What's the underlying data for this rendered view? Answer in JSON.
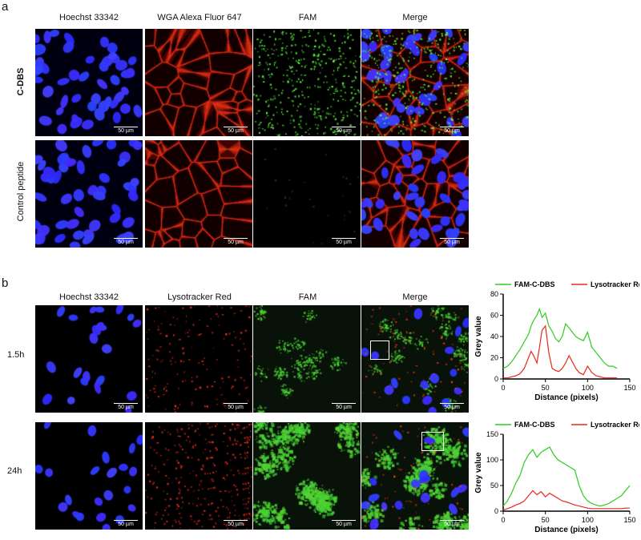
{
  "panel_a": {
    "letter": "a",
    "columns": [
      "Hoechst 33342",
      "WGA Alexa Fluor 647",
      "FAM",
      "Merge"
    ],
    "rows": [
      "C-DBS",
      "Control peptide"
    ],
    "scalebar": "50 µm"
  },
  "panel_b": {
    "letter": "b",
    "columns": [
      "Hoechst 33342",
      "Lysotracker Red",
      "FAM",
      "Merge"
    ],
    "rows": [
      "1.5h",
      "24h"
    ],
    "scalebar": "50 µm"
  },
  "colors": {
    "green": "#2ecc1f",
    "red": "#e8281c",
    "blue": "#2020ff"
  },
  "chart_data": [
    {
      "type": "line",
      "xlabel": "Distance (pixels)",
      "ylabel": "Grey value",
      "xlim": [
        0,
        150
      ],
      "ylim": [
        0,
        80
      ],
      "xticks": [
        0,
        50,
        100,
        150
      ],
      "yticks": [
        0,
        20,
        40,
        60,
        80
      ],
      "legend_position": "top",
      "series": [
        {
          "name": "FAM-C-DBS",
          "color": "#2ecc1f",
          "x": [
            0,
            5,
            10,
            15,
            20,
            25,
            30,
            33,
            36,
            40,
            43,
            46,
            50,
            54,
            58,
            62,
            66,
            70,
            74,
            78,
            82,
            86,
            90,
            95,
            100,
            105,
            110,
            115,
            120,
            125,
            130,
            135
          ],
          "y": [
            10,
            12,
            16,
            22,
            28,
            35,
            42,
            50,
            55,
            60,
            66,
            58,
            62,
            50,
            45,
            38,
            35,
            40,
            52,
            48,
            44,
            40,
            38,
            36,
            44,
            30,
            25,
            20,
            15,
            12,
            12,
            10
          ]
        },
        {
          "name": "Lysotracker Red",
          "color": "#e8281c",
          "x": [
            0,
            5,
            10,
            15,
            20,
            25,
            30,
            33,
            36,
            40,
            43,
            46,
            50,
            54,
            58,
            62,
            66,
            70,
            74,
            78,
            82,
            86,
            90,
            95,
            100,
            105,
            110,
            115,
            120,
            125,
            130,
            135
          ],
          "y": [
            1,
            1,
            2,
            3,
            5,
            10,
            20,
            26,
            22,
            15,
            30,
            46,
            50,
            25,
            10,
            8,
            7,
            10,
            15,
            22,
            16,
            10,
            6,
            4,
            12,
            6,
            3,
            2,
            1,
            1,
            1,
            1
          ]
        }
      ]
    },
    {
      "type": "line",
      "xlabel": "Distance (pixels)",
      "ylabel": "Grey value",
      "xlim": [
        0,
        150
      ],
      "ylim": [
        0,
        150
      ],
      "xticks": [
        0,
        50,
        100,
        150
      ],
      "yticks": [
        0,
        50,
        100,
        150
      ],
      "legend_position": "top",
      "series": [
        {
          "name": "FAM-C-DBS",
          "color": "#2ecc1f",
          "x": [
            0,
            5,
            10,
            15,
            20,
            25,
            30,
            35,
            40,
            45,
            50,
            55,
            60,
            65,
            70,
            75,
            80,
            85,
            90,
            95,
            100,
            105,
            110,
            115,
            120,
            125,
            130,
            135,
            140,
            145,
            150
          ],
          "y": [
            10,
            20,
            35,
            55,
            70,
            95,
            110,
            120,
            105,
            115,
            120,
            125,
            110,
            100,
            95,
            90,
            85,
            80,
            50,
            30,
            20,
            15,
            12,
            10,
            12,
            15,
            20,
            25,
            30,
            40,
            50
          ]
        },
        {
          "name": "Lysotracker Red",
          "color": "#e8281c",
          "x": [
            0,
            5,
            10,
            15,
            20,
            25,
            30,
            35,
            40,
            45,
            50,
            55,
            60,
            65,
            70,
            75,
            80,
            85,
            90,
            95,
            100,
            105,
            110,
            115,
            120,
            125,
            130,
            135,
            140,
            145,
            150
          ],
          "y": [
            2,
            5,
            8,
            12,
            15,
            20,
            30,
            40,
            32,
            38,
            28,
            35,
            30,
            25,
            20,
            18,
            15,
            12,
            10,
            8,
            6,
            5,
            5,
            5,
            5,
            5,
            5,
            5,
            5,
            6,
            6
          ]
        }
      ]
    }
  ]
}
